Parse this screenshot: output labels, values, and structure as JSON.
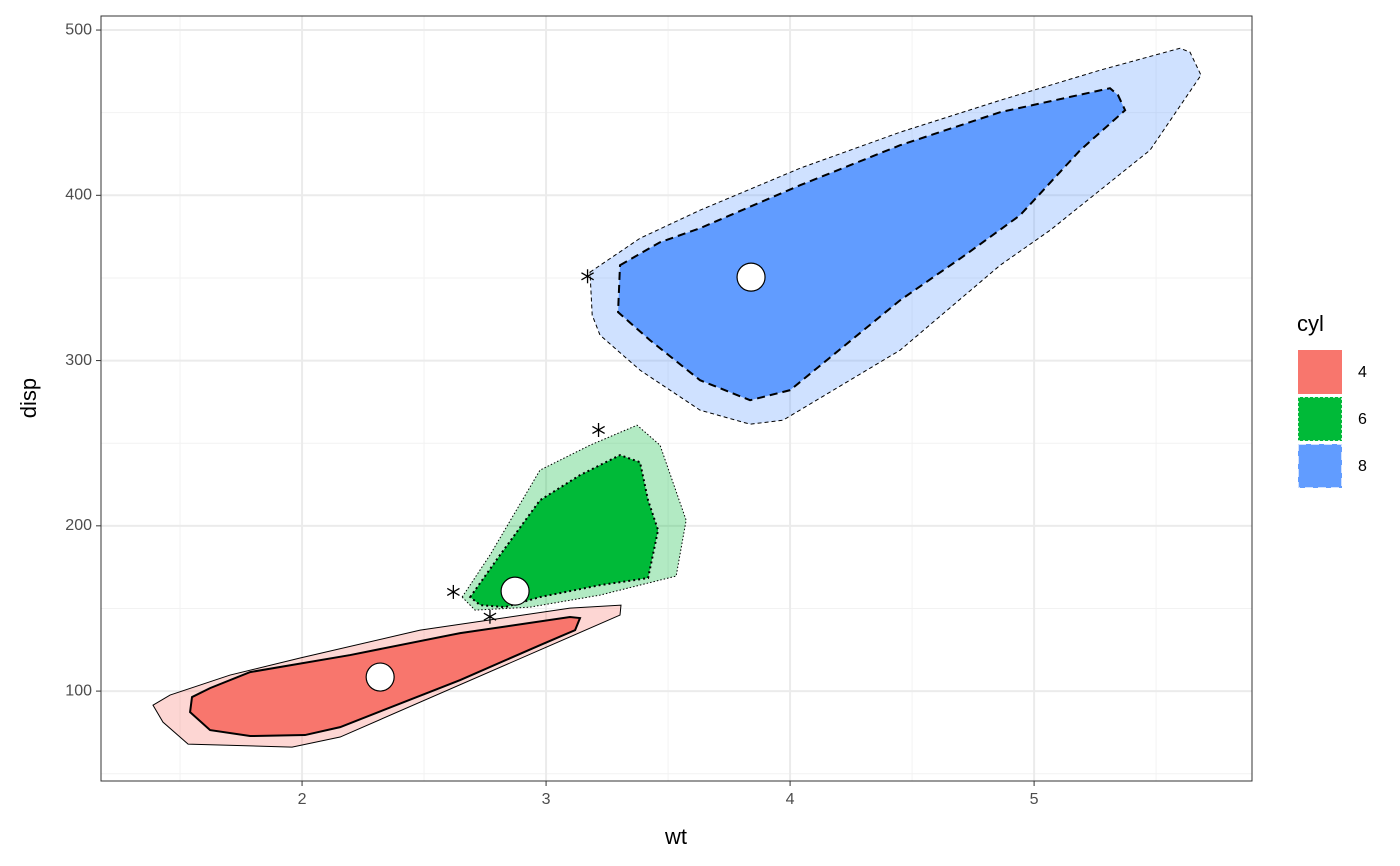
{
  "chart_data": {
    "type": "bagplot",
    "x_label": "wt",
    "y_label": "disp",
    "xlim": [
      1.176,
      5.893
    ],
    "ylim": [
      45.6,
      508.5
    ],
    "xticks": [
      2,
      3,
      4,
      5
    ],
    "yticks": [
      100,
      200,
      300,
      400,
      500
    ],
    "xminor": [
      1.5,
      2.5,
      3.5,
      4.5,
      5.5
    ],
    "yminor": [
      50,
      150,
      250,
      350,
      450
    ],
    "grid": true,
    "legend_title": "cyl",
    "legend_position": "right",
    "series": [
      {
        "name": "4",
        "color": "#F8766D",
        "linetype": "solid",
        "loop": {
          "x": [
            1.389,
            1.43,
            1.533,
            1.959,
            2.156,
            3.303,
            3.307,
            3.098,
            2.484,
            1.992,
            1.705,
            1.459
          ],
          "y": [
            91.5,
            81.2,
            67.9,
            66.1,
            72.2,
            146.0,
            152.0,
            150.2,
            136.9,
            120.0,
            109.7,
            97.6
          ]
        },
        "bag": {
          "x": [
            1.549,
            1.541,
            1.623,
            1.787,
            2.012,
            2.156,
            2.648,
            2.975,
            3.119,
            3.139,
            3.098,
            2.648,
            2.197,
            1.787,
            1.623
          ],
          "y": [
            96.4,
            87.3,
            76.4,
            72.8,
            73.4,
            78.2,
            106.7,
            127.8,
            136.9,
            144.2,
            144.8,
            135.1,
            121.8,
            111.5,
            101.8
          ]
        },
        "median": {
          "x": 2.32,
          "y": 108.5
        },
        "outliers": {
          "x": [],
          "y": []
        }
      },
      {
        "name": "6",
        "color": "#00BA38",
        "linetype": "dotted",
        "loop": {
          "x": [
            2.656,
            2.77,
            2.975,
            3.18,
            3.373,
            3.467,
            3.574,
            3.533,
            3.221,
            2.934,
            2.709
          ],
          "y": [
            156.9,
            182.3,
            233.7,
            248.8,
            260.9,
            248.8,
            203.4,
            169.6,
            158.1,
            150.8,
            149.0
          ]
        },
        "bag": {
          "x": [
            2.689,
            2.811,
            2.975,
            3.139,
            3.303,
            3.385,
            3.418,
            3.459,
            3.418,
            3.221,
            2.975,
            2.832,
            2.73
          ],
          "y": [
            156.9,
            182.3,
            215.5,
            230.7,
            242.8,
            238.5,
            215.5,
            197.4,
            168.4,
            164.1,
            156.9,
            150.8,
            152.0
          ]
        },
        "median": {
          "x": 2.873,
          "y": 160.5
        },
        "outliers": {
          "x": [
            2.62,
            2.77,
            3.215
          ],
          "y": [
            160,
            145,
            258
          ]
        }
      },
      {
        "name": "8",
        "color": "#619CFF",
        "linetype": "dashed",
        "loop": {
          "x": [
            3.18,
            3.385,
            3.631,
            4.041,
            4.451,
            4.861,
            5.27,
            5.598,
            5.639,
            5.684,
            5.475,
            5.066,
            4.861,
            4.451,
            3.971,
            3.836,
            3.631,
            3.385,
            3.221,
            3.189
          ],
          "y": [
            353.5,
            374.0,
            391.0,
            416.4,
            438.2,
            457.5,
            475.7,
            489.0,
            486.6,
            472.7,
            427.3,
            378.9,
            357.7,
            306.3,
            263.9,
            261.5,
            270.0,
            294.2,
            315.4,
            327.5
          ]
        },
        "bag": {
          "x": [
            3.303,
            3.467,
            3.631,
            4.041,
            4.451,
            4.861,
            5.311,
            5.344,
            5.373,
            5.189,
            4.943,
            4.717,
            4.451,
            4.0,
            3.836,
            3.631,
            3.426,
            3.295
          ],
          "y": [
            357.7,
            371.6,
            380.1,
            406.1,
            430.3,
            450.3,
            464.8,
            460.6,
            451.5,
            427.3,
            388.0,
            363.8,
            336.5,
            282.1,
            276.0,
            288.1,
            312.3,
            329.3
          ]
        },
        "median": {
          "x": 3.84,
          "y": 350.5
        },
        "outliers": {
          "x": [
            3.17
          ],
          "y": [
            351
          ]
        }
      }
    ]
  }
}
